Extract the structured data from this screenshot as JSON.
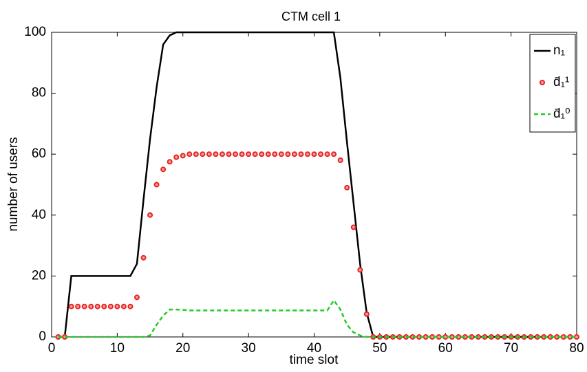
{
  "chart_data": {
    "type": "line",
    "title": "CTM cell 1",
    "x_label": "time slot",
    "y_label": "number of users",
    "x": [
      1,
      2,
      3,
      4,
      5,
      6,
      7,
      8,
      9,
      10,
      11,
      12,
      13,
      14,
      15,
      16,
      17,
      18,
      19,
      20,
      21,
      22,
      23,
      24,
      25,
      26,
      27,
      28,
      29,
      30,
      31,
      32,
      33,
      34,
      35,
      36,
      37,
      38,
      39,
      40,
      41,
      42,
      43,
      44,
      45,
      46,
      47,
      48,
      49,
      50,
      51,
      52,
      53,
      54,
      55,
      56,
      57,
      58,
      59,
      60,
      61,
      62,
      63,
      64,
      65,
      66,
      67,
      68,
      69,
      70,
      71,
      72,
      73,
      74,
      75,
      76,
      77,
      78,
      79,
      80
    ],
    "series": [
      {
        "name": "n₁",
        "color": "#000000",
        "linestyle": "solid",
        "marker": "none",
        "values": [
          0,
          0,
          20,
          20,
          20,
          20,
          20,
          20,
          20,
          20,
          20,
          20,
          24,
          45,
          65,
          82,
          96,
          99,
          100,
          100,
          100,
          100,
          100,
          100,
          100,
          100,
          100,
          100,
          100,
          100,
          100,
          100,
          100,
          100,
          100,
          100,
          100,
          100,
          100,
          100,
          100,
          100,
          100,
          85,
          64,
          44,
          24,
          8,
          0,
          0,
          0,
          0,
          0,
          0,
          0,
          0,
          0,
          0,
          0,
          0,
          0,
          0,
          0,
          0,
          0,
          0,
          0,
          0,
          0,
          0,
          0,
          0,
          0,
          0,
          0,
          0,
          0,
          0,
          0,
          0
        ]
      },
      {
        "name": "d̄₁¹",
        "color": "#e8231f",
        "linestyle": "none",
        "marker": "o",
        "values": [
          0,
          0,
          10,
          10,
          10,
          10,
          10,
          10,
          10,
          10,
          10,
          10,
          13,
          26,
          40,
          50,
          55,
          57.5,
          59,
          59.5,
          60,
          60,
          60,
          60,
          60,
          60,
          60,
          60,
          60,
          60,
          60,
          60,
          60,
          60,
          60,
          60,
          60,
          60,
          60,
          60,
          60,
          60,
          60,
          58,
          49,
          36,
          22,
          7.5,
          0,
          0,
          0,
          0,
          0,
          0,
          0,
          0,
          0,
          0,
          0,
          0,
          0,
          0,
          0,
          0,
          0,
          0,
          0,
          0,
          0,
          0,
          0,
          0,
          0,
          0,
          0,
          0,
          0,
          0,
          0,
          0
        ]
      },
      {
        "name": "d̄₁⁰",
        "color": "#22cc22",
        "linestyle": "dashed",
        "marker": "none",
        "values": [
          0,
          0,
          0,
          0,
          0,
          0,
          0,
          0,
          0,
          0,
          0,
          0,
          0,
          0,
          0.5,
          4,
          7,
          9,
          9,
          8.9,
          8.7,
          8.7,
          8.7,
          8.7,
          8.7,
          8.7,
          8.7,
          8.7,
          8.7,
          8.7,
          8.7,
          8.7,
          8.7,
          8.7,
          8.7,
          8.7,
          8.7,
          8.7,
          8.7,
          8.7,
          8.7,
          8.7,
          12,
          9,
          4,
          1.5,
          0.5,
          0,
          0,
          0,
          0,
          0,
          0,
          0,
          0,
          0,
          0,
          0,
          0,
          0,
          0,
          0,
          0,
          0,
          0,
          0,
          0,
          0,
          0,
          0,
          0,
          0,
          0,
          0,
          0,
          0,
          0,
          0,
          0,
          0
        ]
      }
    ],
    "xlim": [
      0,
      80
    ],
    "xticks": [
      0,
      10,
      20,
      30,
      40,
      50,
      60,
      70,
      80
    ],
    "ylim": [
      0,
      100
    ],
    "yticks": [
      0,
      20,
      40,
      60,
      80,
      100
    ],
    "grid": false,
    "legend": "top-right"
  }
}
